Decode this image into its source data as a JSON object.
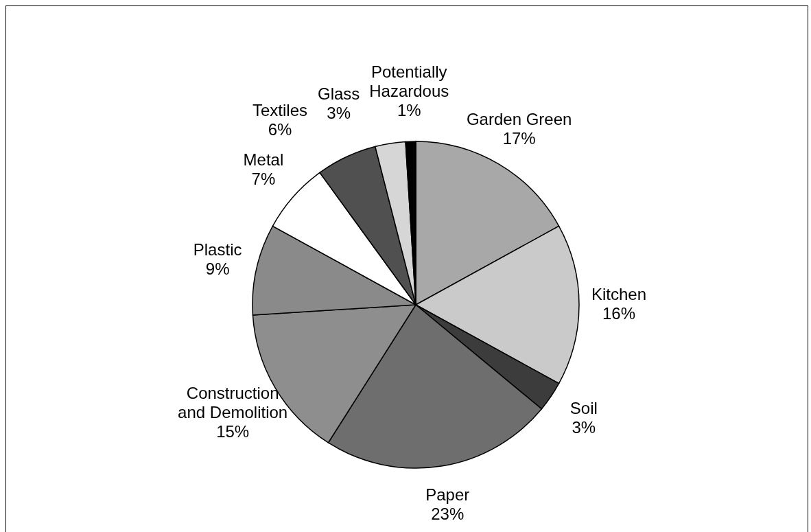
{
  "chart_data": {
    "type": "pie",
    "categories": [
      "Garden Green",
      "Kitchen",
      "Soil",
      "Paper",
      "Construction and Demolition",
      "Plastic",
      "Metal",
      "Textiles",
      "Glass",
      "Potentially Hazardous"
    ],
    "values": [
      17,
      16,
      3,
      23,
      15,
      9,
      7,
      6,
      3,
      1
    ],
    "colors": [
      "#a8a8a8",
      "#cacaca",
      "#3c3c3c",
      "#6e6e6e",
      "#8e8e8e",
      "#8a8a8a",
      "#ffffff",
      "#505050",
      "#d6d6d6",
      "#000000"
    ],
    "value_labels": [
      "17%",
      "16%",
      "3%",
      "23%",
      "15%",
      "9%",
      "7%",
      "6%",
      "3%",
      "1%"
    ]
  }
}
